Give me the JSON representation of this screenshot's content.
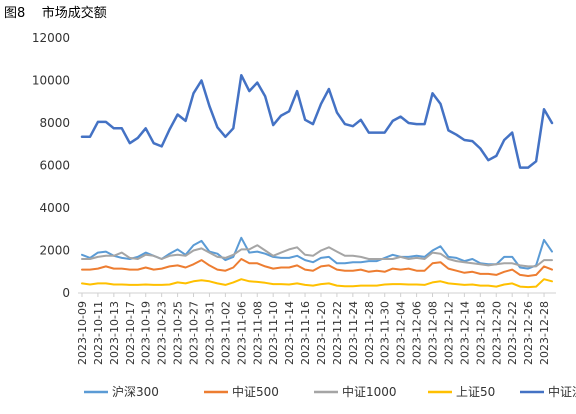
{
  "figure": {
    "title": "图8    市场成交额"
  },
  "chart_data": {
    "type": "line",
    "title": "",
    "xlabel": "",
    "ylabel": "",
    "ylim": [
      0,
      12000
    ],
    "yticks": [
      0,
      2000,
      4000,
      6000,
      8000,
      10000,
      12000
    ],
    "grid": false,
    "legend_position": "bottom",
    "x": [
      "2023-10-09",
      "2023-10-10",
      "2023-10-11",
      "2023-10-12",
      "2023-10-13",
      "2023-10-16",
      "2023-10-17",
      "2023-10-18",
      "2023-10-19",
      "2023-10-20",
      "2023-10-23",
      "2023-10-24",
      "2023-10-25",
      "2023-10-26",
      "2023-10-27",
      "2023-10-30",
      "2023-10-31",
      "2023-11-01",
      "2023-11-02",
      "2023-11-03",
      "2023-11-06",
      "2023-11-07",
      "2023-11-08",
      "2023-11-09",
      "2023-11-10",
      "2023-11-13",
      "2023-11-14",
      "2023-11-15",
      "2023-11-16",
      "2023-11-17",
      "2023-11-20",
      "2023-11-21",
      "2023-11-22",
      "2023-11-23",
      "2023-11-24",
      "2023-11-27",
      "2023-11-28",
      "2023-11-29",
      "2023-11-30",
      "2023-12-01",
      "2023-12-04",
      "2023-12-05",
      "2023-12-06",
      "2023-12-07",
      "2023-12-08",
      "2023-12-11",
      "2023-12-12",
      "2023-12-13",
      "2023-12-14",
      "2023-12-15",
      "2023-12-18",
      "2023-12-19",
      "2023-12-20",
      "2023-12-21",
      "2023-12-22",
      "2023-12-25",
      "2023-12-26",
      "2023-12-27",
      "2023-12-28",
      "2023-12-29"
    ],
    "xtick_labels": [
      "2023-10-09",
      "2023-10-11",
      "2023-10-13",
      "2023-10-17",
      "2023-10-19",
      "2023-10-23",
      "2023-10-25",
      "2023-10-27",
      "2023-10-31",
      "2023-11-02",
      "2023-11-06",
      "2023-11-08",
      "2023-11-10",
      "2023-11-14",
      "2023-11-16",
      "2023-11-20",
      "2023-11-22",
      "2023-11-24",
      "2023-11-28",
      "2023-11-30",
      "2023-12-04",
      "2023-12-06",
      "2023-12-08",
      "2023-12-12",
      "2023-12-14",
      "2023-12-18",
      "2023-12-20",
      "2023-12-22",
      "2023-12-26",
      "2023-12-28"
    ],
    "series": [
      {
        "name": "沪深300",
        "color": "#5B9BD5",
        "values": [
          1800,
          1650,
          1900,
          1950,
          1750,
          1650,
          1600,
          1700,
          1900,
          1750,
          1600,
          1850,
          2050,
          1800,
          2250,
          2450,
          1950,
          1850,
          1550,
          1700,
          2600,
          1900,
          1950,
          1850,
          1700,
          1650,
          1650,
          1750,
          1550,
          1450,
          1650,
          1700,
          1400,
          1400,
          1450,
          1450,
          1500,
          1500,
          1650,
          1800,
          1700,
          1700,
          1750,
          1700,
          2000,
          2200,
          1700,
          1650,
          1500,
          1600,
          1400,
          1350,
          1350,
          1700,
          1700,
          1200,
          1150,
          1300,
          2500,
          1950
        ]
      },
      {
        "name": "中证500",
        "color": "#ED7D31",
        "values": [
          1100,
          1100,
          1150,
          1250,
          1150,
          1150,
          1100,
          1100,
          1200,
          1100,
          1150,
          1250,
          1300,
          1200,
          1350,
          1550,
          1300,
          1100,
          1050,
          1200,
          1600,
          1400,
          1400,
          1250,
          1150,
          1200,
          1200,
          1300,
          1100,
          1050,
          1250,
          1300,
          1100,
          1050,
          1050,
          1100,
          1000,
          1050,
          1000,
          1150,
          1100,
          1150,
          1050,
          1050,
          1400,
          1450,
          1150,
          1050,
          950,
          1000,
          900,
          900,
          850,
          1000,
          1100,
          850,
          800,
          850,
          1250,
          1100
        ]
      },
      {
        "name": "中证1000",
        "color": "#A5A5A5",
        "values": [
          1600,
          1600,
          1700,
          1750,
          1750,
          1900,
          1650,
          1600,
          1800,
          1750,
          1600,
          1750,
          1800,
          1750,
          2000,
          2100,
          1900,
          1700,
          1650,
          1800,
          2050,
          2050,
          2250,
          2000,
          1750,
          1900,
          2050,
          2150,
          1800,
          1750,
          2000,
          2150,
          1950,
          1750,
          1750,
          1700,
          1600,
          1600,
          1600,
          1600,
          1700,
          1600,
          1650,
          1600,
          1900,
          1850,
          1600,
          1500,
          1450,
          1400,
          1350,
          1300,
          1350,
          1400,
          1400,
          1300,
          1250,
          1250,
          1550,
          1550
        ]
      },
      {
        "name": "上证50",
        "color": "#FFC000",
        "values": [
          450,
          400,
          450,
          450,
          400,
          400,
          380,
          380,
          400,
          380,
          380,
          400,
          500,
          450,
          550,
          600,
          550,
          450,
          380,
          500,
          650,
          550,
          520,
          480,
          420,
          420,
          400,
          450,
          380,
          350,
          420,
          450,
          350,
          320,
          320,
          350,
          350,
          350,
          400,
          420,
          420,
          400,
          400,
          380,
          500,
          550,
          450,
          420,
          380,
          400,
          350,
          350,
          300,
          400,
          450,
          300,
          280,
          300,
          650,
          550
        ]
      },
      {
        "name": "中证流通",
        "color": "#4472C4",
        "values": [
          7350,
          7350,
          8050,
          8050,
          7750,
          7750,
          7050,
          7300,
          7750,
          7050,
          6900,
          7700,
          8400,
          8100,
          9400,
          10000,
          8800,
          7800,
          7350,
          7750,
          10250,
          9500,
          9900,
          9250,
          7900,
          8350,
          8550,
          9500,
          8150,
          7950,
          8900,
          9600,
          8500,
          7950,
          7850,
          8150,
          7550,
          7550,
          7550,
          8100,
          8300,
          8000,
          7950,
          7950,
          9400,
          8900,
          7650,
          7450,
          7200,
          7150,
          6800,
          6250,
          6450,
          7200,
          7550,
          5900,
          5900,
          6200,
          8650,
          8000
        ]
      }
    ]
  }
}
